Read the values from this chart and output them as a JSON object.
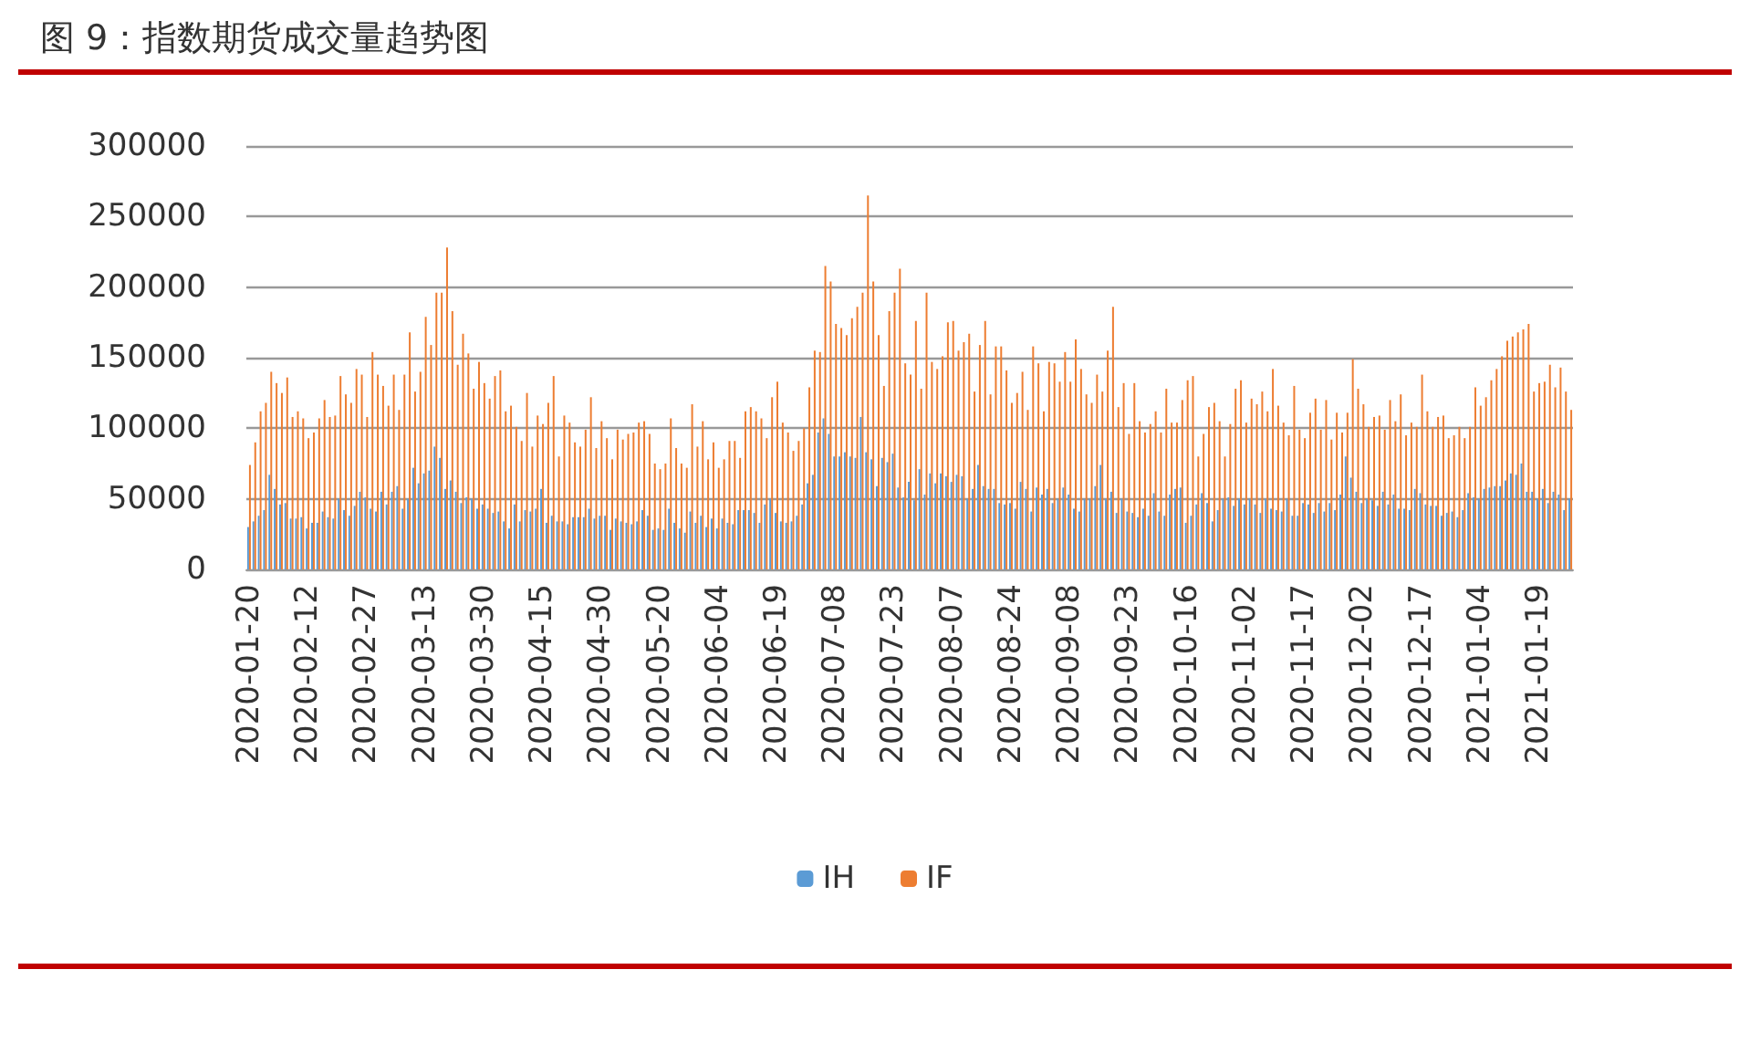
{
  "chart_data": {
    "type": "bar",
    "title": "图 9：指数期货成交量趋势图",
    "categories": [
      "2020-01-20",
      null,
      null,
      null,
      null,
      null,
      null,
      null,
      null,
      null,
      null,
      "2020-02-12",
      null,
      null,
      null,
      null,
      null,
      null,
      null,
      null,
      null,
      null,
      "2020-02-27",
      null,
      null,
      null,
      null,
      null,
      null,
      null,
      null,
      null,
      null,
      "2020-03-13",
      null,
      null,
      null,
      null,
      null,
      null,
      null,
      null,
      null,
      null,
      "2020-03-30",
      null,
      null,
      null,
      null,
      null,
      null,
      null,
      null,
      null,
      null,
      "2020-04-15",
      null,
      null,
      null,
      null,
      null,
      null,
      null,
      null,
      null,
      null,
      "2020-04-30",
      null,
      null,
      null,
      null,
      null,
      null,
      null,
      null,
      null,
      null,
      "2020-05-20",
      null,
      null,
      null,
      null,
      null,
      null,
      null,
      null,
      null,
      null,
      "2020-06-04",
      null,
      null,
      null,
      null,
      null,
      null,
      null,
      null,
      null,
      null,
      "2020-06-19",
      null,
      null,
      null,
      null,
      null,
      null,
      null,
      null,
      null,
      null,
      "2020-07-08",
      null,
      null,
      null,
      null,
      null,
      null,
      null,
      null,
      null,
      null,
      "2020-07-23",
      null,
      null,
      null,
      null,
      null,
      null,
      null,
      null,
      null,
      null,
      "2020-08-07",
      null,
      null,
      null,
      null,
      null,
      null,
      null,
      null,
      null,
      null,
      "2020-08-24",
      null,
      null,
      null,
      null,
      null,
      null,
      null,
      null,
      null,
      null,
      "2020-09-08",
      null,
      null,
      null,
      null,
      null,
      null,
      null,
      null,
      null,
      null,
      "2020-09-23",
      null,
      null,
      null,
      null,
      null,
      null,
      null,
      null,
      null,
      null,
      "2020-10-16",
      null,
      null,
      null,
      null,
      null,
      null,
      null,
      null,
      null,
      null,
      "2020-11-02",
      null,
      null,
      null,
      null,
      null,
      null,
      null,
      null,
      null,
      null,
      "2020-11-17",
      null,
      null,
      null,
      null,
      null,
      null,
      null,
      null,
      null,
      null,
      "2020-12-02",
      null,
      null,
      null,
      null,
      null,
      null,
      null,
      null,
      null,
      null,
      "2020-12-17",
      null,
      null,
      null,
      null,
      null,
      null,
      null,
      null,
      null,
      null,
      "2021-01-04",
      null,
      null,
      null,
      null,
      null,
      null,
      null,
      null,
      null,
      null,
      "2021-01-19",
      null,
      null,
      null,
      null,
      null,
      null
    ],
    "series": [
      {
        "name": "IH",
        "color": "#5b9bd5",
        "values": [
          30000,
          34000,
          38000,
          42000,
          67000,
          57000,
          46000,
          47000,
          36000,
          36000,
          37000,
          29000,
          33000,
          33000,
          41000,
          37000,
          36000,
          50000,
          42000,
          38000,
          45000,
          55000,
          51000,
          43000,
          41000,
          55000,
          46000,
          55000,
          59000,
          43000,
          50000,
          72000,
          61000,
          68000,
          70000,
          87000,
          79000,
          57000,
          63000,
          55000,
          47000,
          51000,
          50000,
          43000,
          46000,
          43000,
          40000,
          41000,
          34000,
          29000,
          46000,
          34000,
          42000,
          41000,
          43000,
          57000,
          33000,
          38000,
          34000,
          34000,
          32000,
          37000,
          37000,
          37000,
          43000,
          36000,
          38000,
          38000,
          28000,
          36000,
          34000,
          33000,
          32000,
          34000,
          42000,
          38000,
          28000,
          29000,
          28000,
          43000,
          33000,
          29000,
          26000,
          41000,
          33000,
          38000,
          30000,
          36000,
          29000,
          36000,
          33000,
          32000,
          42000,
          42000,
          42000,
          40000,
          33000,
          46000,
          50000,
          40000,
          34000,
          33000,
          34000,
          38000,
          46000,
          61000,
          67000,
          97000,
          107000,
          96000,
          80000,
          80000,
          83000,
          80000,
          79000,
          108000,
          83000,
          78000,
          59000,
          79000,
          76000,
          82000,
          58000,
          51000,
          62000,
          49000,
          71000,
          53000,
          68000,
          61000,
          68000,
          66000,
          62000,
          67000,
          66000,
          50000,
          57000,
          74000,
          59000,
          57000,
          57000,
          47000,
          46000,
          47000,
          43000,
          62000,
          57000,
          41000,
          58000,
          53000,
          57000,
          47000,
          50000,
          58000,
          53000,
          43000,
          41000,
          50000,
          50000,
          59000,
          74000,
          50000,
          55000,
          40000,
          50000,
          41000,
          40000,
          37000,
          43000,
          38000,
          54000,
          41000,
          38000,
          53000,
          57000,
          58000,
          33000,
          38000,
          46000,
          54000,
          47000,
          34000,
          42000,
          50000,
          51000,
          45000,
          50000,
          46000,
          50000,
          46000,
          40000,
          50000,
          43000,
          42000,
          41000,
          50000,
          38000,
          38000,
          47000,
          46000,
          40000,
          47000,
          41000,
          47000,
          42000,
          53000,
          80000,
          65000,
          55000,
          47000,
          50000,
          49000,
          45000,
          55000,
          46000,
          53000,
          43000,
          43000,
          42000,
          57000,
          54000,
          46000,
          45000,
          45000,
          38000,
          40000,
          41000,
          37000,
          42000,
          54000,
          51000,
          50000,
          57000,
          58000,
          59000,
          59000,
          63000,
          68000,
          67000,
          75000,
          55000,
          55000,
          50000,
          57000,
          47000,
          55000,
          53000,
          42000,
          50000
        ]
      },
      {
        "name": "IF",
        "color": "#ed7d31",
        "values": [
          74000,
          90000,
          112000,
          118000,
          140000,
          132000,
          125000,
          136000,
          108000,
          112000,
          107000,
          93000,
          97000,
          107000,
          120000,
          108000,
          109000,
          137000,
          124000,
          118000,
          142000,
          138000,
          108000,
          154000,
          138000,
          130000,
          116000,
          138000,
          113000,
          138000,
          168000,
          126000,
          140000,
          179000,
          159000,
          196000,
          196000,
          228000,
          183000,
          145000,
          167000,
          153000,
          128000,
          147000,
          132000,
          121000,
          137000,
          141000,
          112000,
          116000,
          101000,
          91000,
          125000,
          87000,
          109000,
          103000,
          118000,
          137000,
          80000,
          109000,
          104000,
          90000,
          87000,
          99000,
          122000,
          86000,
          105000,
          93000,
          78000,
          99000,
          92000,
          96000,
          97000,
          104000,
          105000,
          96000,
          75000,
          71000,
          75000,
          107000,
          86000,
          75000,
          72000,
          117000,
          87000,
          105000,
          78000,
          90000,
          72000,
          78000,
          91000,
          91000,
          79000,
          112000,
          115000,
          112000,
          107000,
          93000,
          122000,
          133000,
          104000,
          97000,
          84000,
          91000,
          100000,
          129000,
          155000,
          154000,
          215000,
          204000,
          174000,
          171000,
          166000,
          178000,
          186000,
          196000,
          265000,
          204000,
          166000,
          130000,
          183000,
          196000,
          213000,
          146000,
          138000,
          176000,
          128000,
          196000,
          147000,
          142000,
          151000,
          175000,
          176000,
          155000,
          161000,
          167000,
          126000,
          159000,
          176000,
          124000,
          158000,
          158000,
          141000,
          118000,
          125000,
          140000,
          113000,
          158000,
          146000,
          112000,
          147000,
          146000,
          133000,
          154000,
          133000,
          163000,
          142000,
          124000,
          118000,
          138000,
          126000,
          155000,
          186000,
          115000,
          132000,
          96000,
          132000,
          105000,
          97000,
          103000,
          112000,
          97000,
          128000,
          104000,
          104000,
          120000,
          134000,
          137000,
          80000,
          96000,
          115000,
          118000,
          105000,
          80000,
          103000,
          128000,
          134000,
          104000,
          121000,
          117000,
          126000,
          112000,
          142000,
          116000,
          104000,
          95000,
          130000,
          99000,
          93000,
          111000,
          121000,
          99000,
          120000,
          92000,
          111000,
          97000,
          111000,
          149000,
          128000,
          117000,
          101000,
          108000,
          109000,
          99000,
          120000,
          105000,
          124000,
          95000,
          104000,
          101000,
          138000,
          112000,
          101000,
          108000,
          109000,
          93000,
          95000,
          101000,
          93000,
          101000,
          129000,
          116000,
          122000,
          134000,
          142000,
          151000,
          162000,
          165000,
          168000,
          170000,
          174000,
          126000,
          132000,
          133000,
          145000,
          129000,
          143000,
          126000,
          113000
        ]
      }
    ],
    "ylim": [
      0,
      300000
    ],
    "yticks": [
      0,
      50000,
      100000,
      150000,
      200000,
      250000,
      300000
    ],
    "grid": "y",
    "legend": "bottom"
  }
}
